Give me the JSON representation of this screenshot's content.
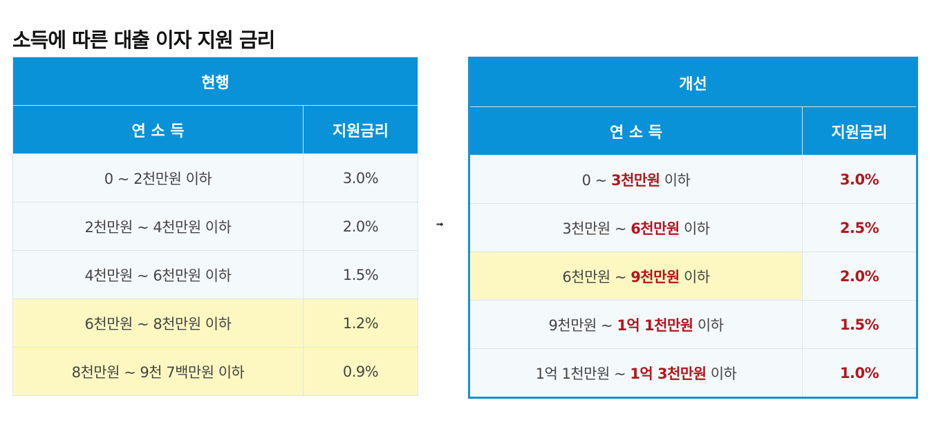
{
  "title": "소득에 따른 대출 이자 지원 금리",
  "arrow": "➟",
  "current": {
    "header": "현행",
    "col_income": "연 소 득",
    "col_rate": "지원금리",
    "rows": [
      {
        "income": "0 ~ 2천만원 이하",
        "rate": "3.0%",
        "highlight": false
      },
      {
        "income": "2천만원 ~ 4천만원 이하",
        "rate": "2.0%",
        "highlight": false
      },
      {
        "income": "4천만원 ~ 6천만원 이하",
        "rate": "1.5%",
        "highlight": false
      },
      {
        "income": "6천만원 ~ 8천만원 이하",
        "rate": "1.2%",
        "highlight": true
      },
      {
        "income": "8천만원 ~ 9천 7백만원 이하",
        "rate": "0.9%",
        "highlight": true
      }
    ]
  },
  "improved": {
    "header": "개선",
    "col_income": "연 소 득",
    "col_rate": "지원금리",
    "rows": [
      {
        "pre": "0 ~ ",
        "bold": "3천만원",
        "post": " 이하",
        "rate": "3.0%",
        "highlight": false
      },
      {
        "pre": "3천만원 ~ ",
        "bold": "6천만원",
        "post": " 이하",
        "rate": "2.5%",
        "highlight": false
      },
      {
        "pre": "6천만원 ~ ",
        "bold": "9천만원",
        "post": " 이하",
        "rate": "2.0%",
        "highlight": true
      },
      {
        "pre": "9천만원 ~ ",
        "bold": "1억 1천만원",
        "post": " 이하",
        "rate": "1.5%",
        "highlight": false
      },
      {
        "pre": "1억 1천만원 ~ ",
        "bold": "1억 3천만원",
        "post": " 이하",
        "rate": "1.0%",
        "highlight": false
      }
    ]
  },
  "colors": {
    "header_bg": "#0992d7",
    "highlight_bg": "#fdf8c2",
    "accent_red": "#b2161b"
  }
}
